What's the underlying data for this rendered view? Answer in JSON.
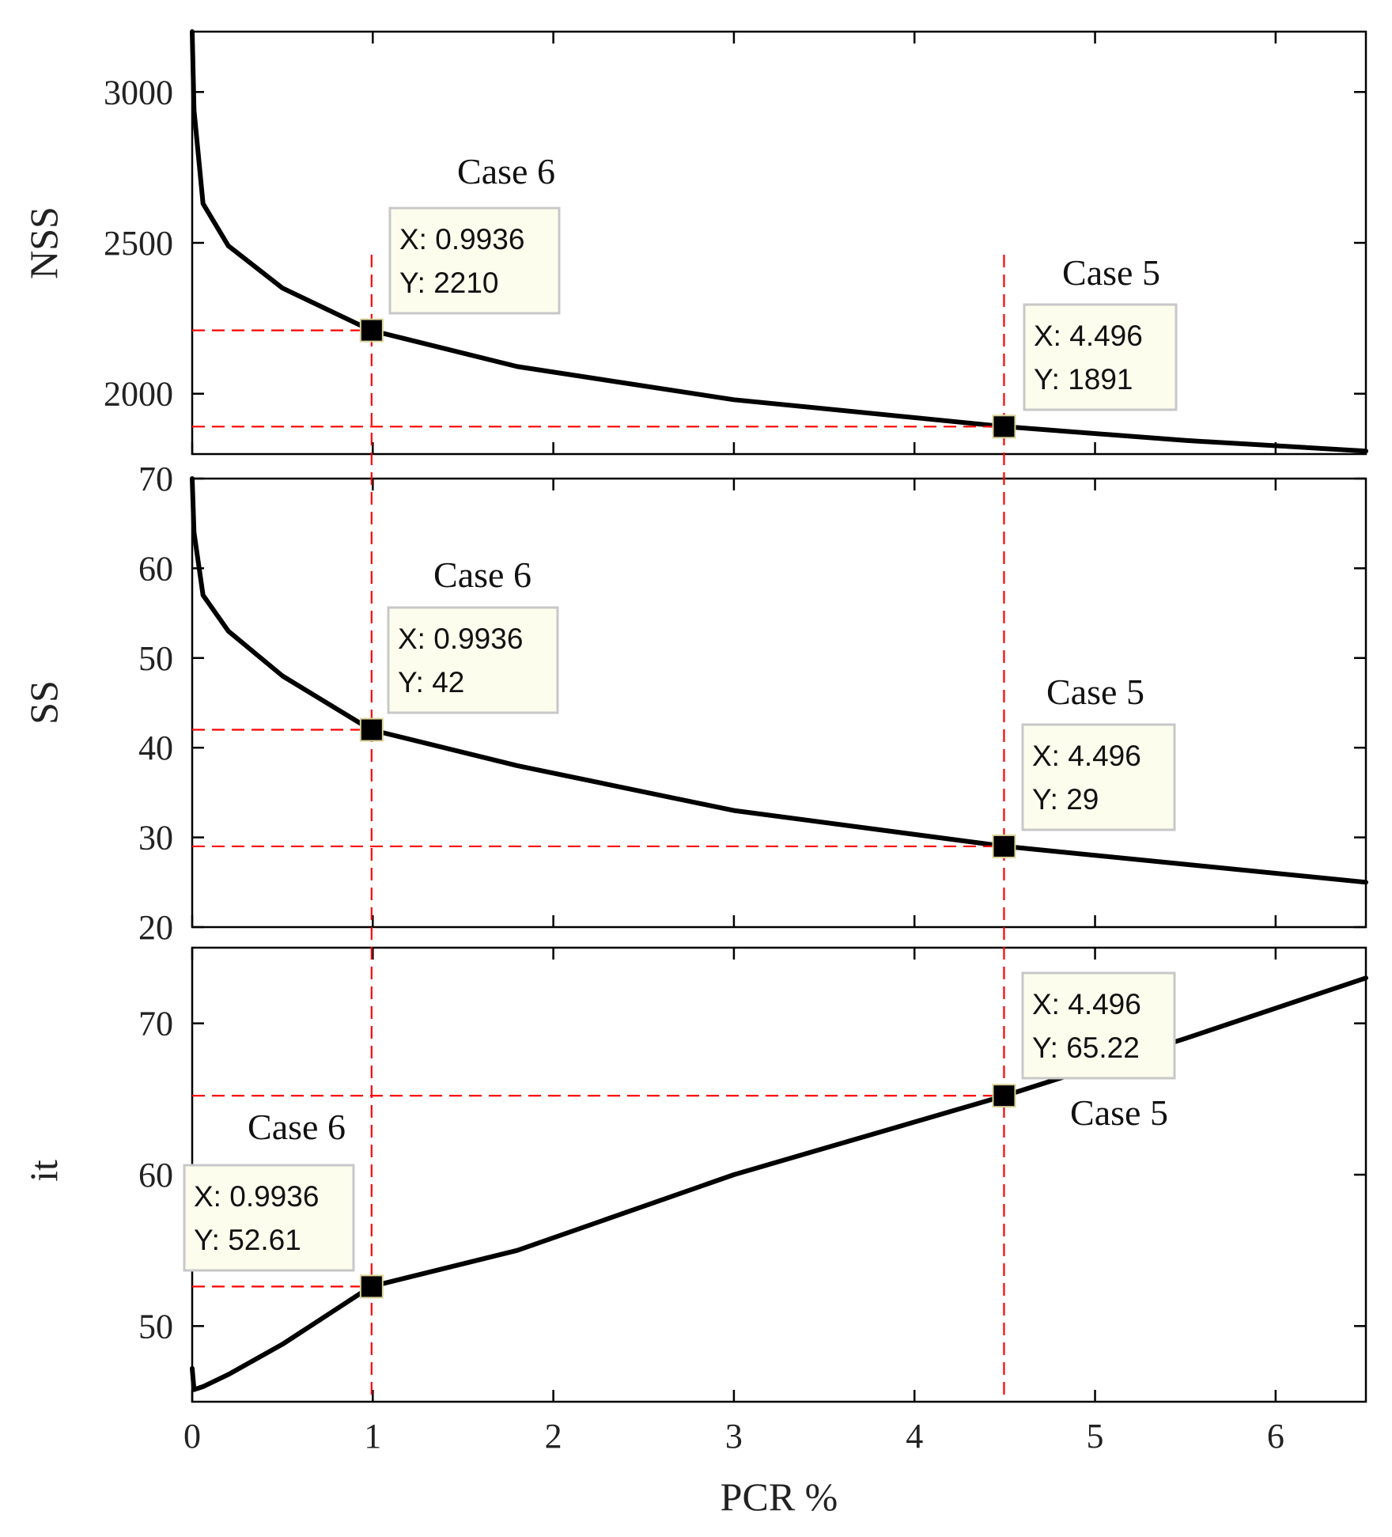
{
  "chart_data": [
    {
      "type": "line",
      "ylabel": "NSS",
      "xlabel": "",
      "xlim": [
        0,
        6.5
      ],
      "ylim": [
        1800,
        3200
      ],
      "yticks": [
        2000,
        2500,
        3000
      ],
      "ytick_labels": [
        "2000",
        "2500",
        "3000"
      ],
      "x": [
        0,
        0.01,
        0.06,
        0.2,
        0.5,
        0.99,
        1.8,
        3.0,
        4.5,
        5.5,
        6.5
      ],
      "values": [
        3200,
        2940,
        2630,
        2490,
        2350,
        2210,
        2090,
        1980,
        1891,
        1845,
        1810
      ],
      "annotations": [
        {
          "label": "Case 6",
          "x": 0.9936,
          "y": 2210,
          "line1": "X: 0.9936",
          "line2": "Y: 2210"
        },
        {
          "label": "Case 5",
          "x": 4.496,
          "y": 1891,
          "line1": "X: 4.496",
          "line2": "Y: 1891"
        }
      ]
    },
    {
      "type": "line",
      "ylabel": "SS",
      "xlabel": "",
      "xlim": [
        0,
        6.5
      ],
      "ylim": [
        20,
        70
      ],
      "yticks": [
        20,
        30,
        40,
        50,
        60,
        70
      ],
      "ytick_labels": [
        "20",
        "30",
        "40",
        "50",
        "60",
        "70"
      ],
      "x": [
        0,
        0.01,
        0.06,
        0.2,
        0.5,
        0.99,
        1.8,
        3.0,
        4.5,
        5.5,
        6.5
      ],
      "values": [
        70,
        64,
        57,
        53,
        48,
        42,
        38,
        33,
        29,
        27,
        25
      ],
      "annotations": [
        {
          "label": "Case 6",
          "x": 0.9936,
          "y": 42,
          "line1": "X: 0.9936",
          "line2": "Y: 42"
        },
        {
          "label": "Case 5",
          "x": 4.496,
          "y": 29,
          "line1": "X: 4.496",
          "line2": "Y: 29"
        }
      ]
    },
    {
      "type": "line",
      "ylabel": "it",
      "xlabel": "PCR %",
      "xlim": [
        0,
        6.5
      ],
      "ylim": [
        45,
        75
      ],
      "yticks": [
        50,
        60,
        70
      ],
      "ytick_labels": [
        "50",
        "60",
        "70"
      ],
      "xticks": [
        0,
        1,
        2,
        3,
        4,
        5,
        6
      ],
      "xtick_labels": [
        "0",
        "1",
        "2",
        "3",
        "4",
        "5",
        "6"
      ],
      "x": [
        0,
        0.01,
        0.06,
        0.2,
        0.5,
        0.99,
        1.8,
        3.0,
        4.5,
        5.5,
        6.5
      ],
      "values": [
        47.2,
        45.8,
        46.0,
        46.8,
        48.8,
        52.61,
        55.0,
        60.0,
        65.22,
        69.0,
        73.0
      ],
      "annotations": [
        {
          "label": "Case 6",
          "x": 0.9936,
          "y": 52.61,
          "line1": "X: 0.9936",
          "line2": "Y: 52.61"
        },
        {
          "label": "Case 5",
          "x": 4.496,
          "y": 65.22,
          "line1": "X: 4.496",
          "line2": "Y: 65.22"
        }
      ]
    }
  ],
  "colors": {
    "curve": "#000000",
    "guide": "#ff0000",
    "tooltip_fill": "#fdfdee",
    "tooltip_border": "#c8c8c8"
  }
}
